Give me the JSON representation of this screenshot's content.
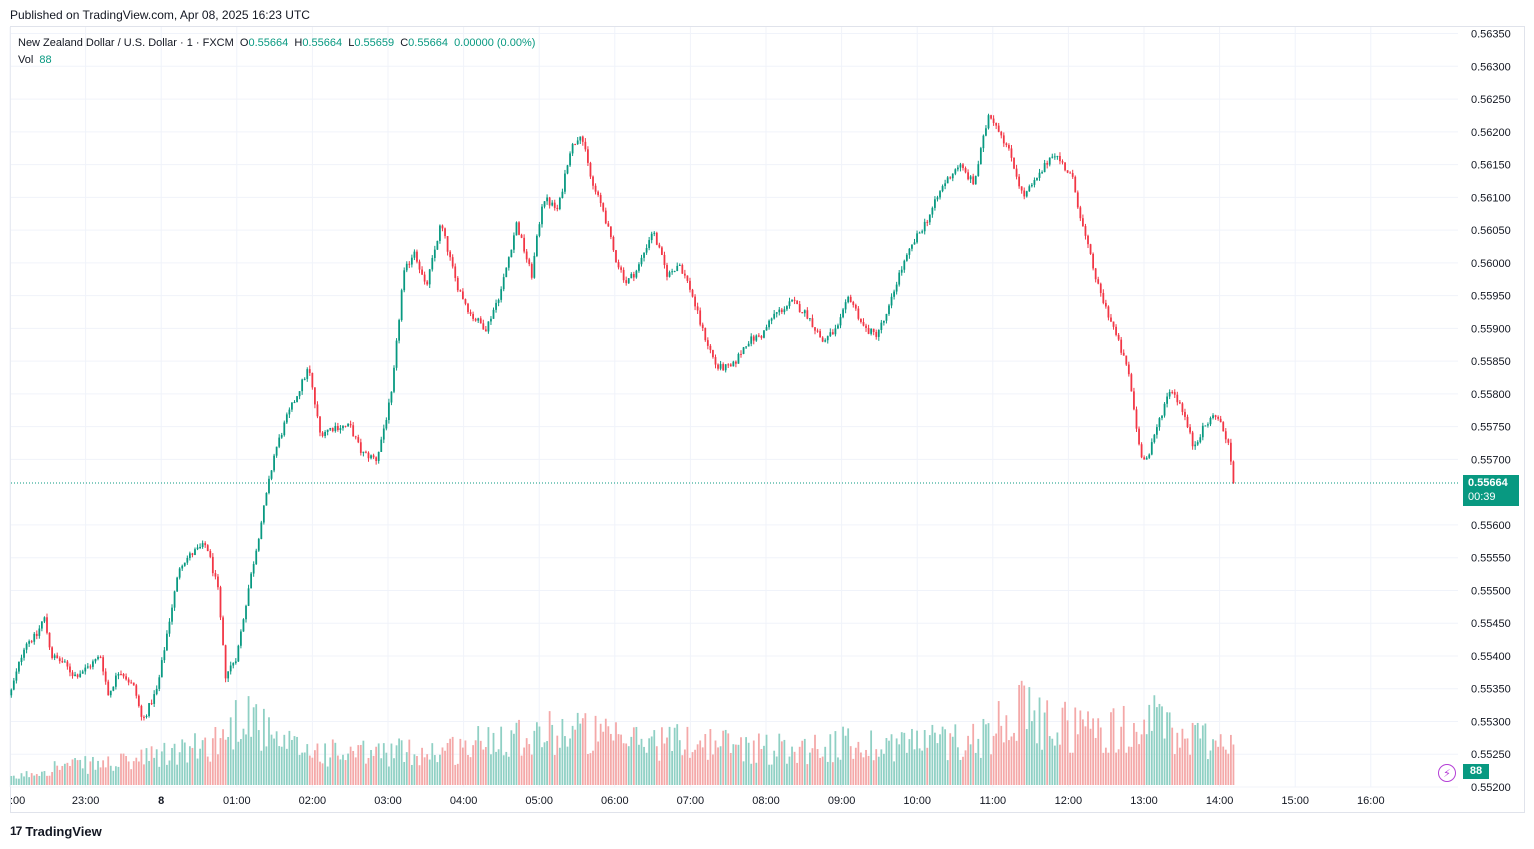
{
  "header": {
    "published": "Published on TradingView.com, Apr 08, 2025 16:23 UTC"
  },
  "legend": {
    "symbol": "New Zealand Dollar / U.S. Dollar · 1 · FXCM",
    "o_label": "O",
    "o_value": "0.55664",
    "h_label": "H",
    "h_value": "0.55664",
    "l_label": "L",
    "l_value": "0.55659",
    "c_label": "C",
    "c_value": "0.55664",
    "change": "0.00000 (0.00%)",
    "vol_label": "Vol",
    "vol_value": "88"
  },
  "last_price": {
    "value": "0.55664",
    "countdown": "00:39"
  },
  "volume_badge": "88",
  "footer": {
    "brand": "TradingView",
    "logo_glyph": "17"
  },
  "colors": {
    "up": "#089981",
    "down": "#f23645",
    "up_vol": "#8fd0c4",
    "down_vol": "#f4a8a8",
    "grid": "#f0f3fa",
    "axis_text": "#131722"
  },
  "chart_data": {
    "type": "candlestick",
    "title": "New Zealand Dollar / U.S. Dollar · 1 · FXCM",
    "y_axis": {
      "position": "right",
      "ylim": [
        0.552,
        0.5636
      ],
      "ticks": [
        "0.56350",
        "0.56300",
        "0.56250",
        "0.56200",
        "0.56150",
        "0.56100",
        "0.56050",
        "0.56000",
        "0.55950",
        "0.55900",
        "0.55850",
        "0.55800",
        "0.55750",
        "0.55700",
        "0.55600",
        "0.55550",
        "0.55500",
        "0.55450",
        "0.55400",
        "0.55350",
        "0.55300",
        "0.55250",
        "0.55200"
      ]
    },
    "x_axis": {
      "ticks": [
        ":00",
        "23:00",
        "8",
        "01:00",
        "02:00",
        "03:00",
        "04:00",
        "05:00",
        "06:00",
        "07:00",
        "08:00",
        "09:00",
        "10:00",
        "11:00",
        "12:00",
        "13:00",
        "14:00",
        "15:00",
        "16:00"
      ]
    },
    "last_close": 0.55664,
    "price_path": [
      [
        0,
        0.5534
      ],
      [
        0.2,
        0.5542
      ],
      [
        0.35,
        0.5543
      ],
      [
        0.45,
        0.5546
      ],
      [
        0.55,
        0.554
      ],
      [
        0.7,
        0.5539
      ],
      [
        0.85,
        0.5537
      ],
      [
        1.0,
        0.5538
      ],
      [
        1.2,
        0.554
      ],
      [
        1.3,
        0.5534
      ],
      [
        1.45,
        0.5538
      ],
      [
        1.65,
        0.5535
      ],
      [
        1.75,
        0.553
      ],
      [
        1.95,
        0.5535
      ],
      [
        2.1,
        0.5545
      ],
      [
        2.25,
        0.5554
      ],
      [
        2.45,
        0.5556
      ],
      [
        2.6,
        0.5557
      ],
      [
        2.75,
        0.555
      ],
      [
        2.85,
        0.5537
      ],
      [
        3.0,
        0.554
      ],
      [
        3.15,
        0.555
      ],
      [
        3.35,
        0.5562
      ],
      [
        3.5,
        0.5571
      ],
      [
        3.65,
        0.5576
      ],
      [
        3.8,
        0.558
      ],
      [
        3.95,
        0.5584
      ],
      [
        4.1,
        0.5574
      ],
      [
        4.3,
        0.5575
      ],
      [
        4.5,
        0.5575
      ],
      [
        4.65,
        0.5571
      ],
      [
        4.85,
        0.557
      ],
      [
        5.05,
        0.558
      ],
      [
        5.2,
        0.5598
      ],
      [
        5.35,
        0.5602
      ],
      [
        5.5,
        0.5596
      ],
      [
        5.7,
        0.5606
      ],
      [
        5.9,
        0.5597
      ],
      [
        6.1,
        0.5592
      ],
      [
        6.3,
        0.559
      ],
      [
        6.5,
        0.5596
      ],
      [
        6.7,
        0.5606
      ],
      [
        6.9,
        0.5598
      ],
      [
        7.05,
        0.561
      ],
      [
        7.25,
        0.5608
      ],
      [
        7.4,
        0.5617
      ],
      [
        7.55,
        0.562
      ],
      [
        7.7,
        0.5612
      ],
      [
        7.85,
        0.5608
      ],
      [
        8.0,
        0.5601
      ],
      [
        8.15,
        0.5597
      ],
      [
        8.3,
        0.5599
      ],
      [
        8.5,
        0.5605
      ],
      [
        8.7,
        0.5598
      ],
      [
        8.85,
        0.56
      ],
      [
        9.0,
        0.5596
      ],
      [
        9.15,
        0.559
      ],
      [
        9.35,
        0.5584
      ],
      [
        9.55,
        0.5584
      ],
      [
        9.75,
        0.5588
      ],
      [
        9.95,
        0.5589
      ],
      [
        10.1,
        0.5592
      ],
      [
        10.35,
        0.5594
      ],
      [
        10.55,
        0.5592
      ],
      [
        10.75,
        0.5588
      ],
      [
        10.95,
        0.559
      ],
      [
        11.1,
        0.5595
      ],
      [
        11.3,
        0.559
      ],
      [
        11.45,
        0.5589
      ],
      [
        11.6,
        0.5592
      ],
      [
        11.75,
        0.5598
      ],
      [
        11.95,
        0.5603
      ],
      [
        12.15,
        0.5607
      ],
      [
        12.35,
        0.5612
      ],
      [
        12.55,
        0.5615
      ],
      [
        12.75,
        0.5612
      ],
      [
        12.95,
        0.5623
      ],
      [
        13.1,
        0.562
      ],
      [
        13.25,
        0.5616
      ],
      [
        13.4,
        0.561
      ],
      [
        13.6,
        0.5613
      ],
      [
        13.8,
        0.5617
      ],
      [
        14.05,
        0.5613
      ],
      [
        14.2,
        0.5605
      ],
      [
        14.4,
        0.5596
      ],
      [
        14.6,
        0.559
      ],
      [
        14.8,
        0.5583
      ],
      [
        14.95,
        0.5571
      ],
      [
        15.05,
        0.557
      ],
      [
        15.2,
        0.5576
      ],
      [
        15.35,
        0.5581
      ],
      [
        15.5,
        0.5578
      ],
      [
        15.65,
        0.5572
      ],
      [
        15.8,
        0.5575
      ],
      [
        15.95,
        0.5577
      ],
      [
        16.1,
        0.5573
      ],
      [
        16.2,
        0.55664
      ]
    ],
    "volume": {
      "ylim": [
        0,
        300
      ],
      "path": [
        [
          0,
          8
        ],
        [
          0.6,
          25
        ],
        [
          1.5,
          30
        ],
        [
          2.0,
          40
        ],
        [
          2.5,
          50
        ],
        [
          2.9,
          70
        ],
        [
          3.1,
          110
        ],
        [
          3.5,
          55
        ],
        [
          4.5,
          40
        ],
        [
          5.0,
          45
        ],
        [
          5.5,
          45
        ],
        [
          6.0,
          50
        ],
        [
          6.5,
          70
        ],
        [
          7.0,
          70
        ],
        [
          7.5,
          75
        ],
        [
          8.0,
          60
        ],
        [
          8.5,
          60
        ],
        [
          9.0,
          60
        ],
        [
          9.5,
          55
        ],
        [
          10.0,
          50
        ],
        [
          10.5,
          50
        ],
        [
          11.0,
          55
        ],
        [
          11.5,
          55
        ],
        [
          12.0,
          60
        ],
        [
          12.5,
          60
        ],
        [
          13.0,
          70
        ],
        [
          13.2,
          110
        ],
        [
          13.6,
          85
        ],
        [
          14.0,
          80
        ],
        [
          14.5,
          75
        ],
        [
          14.9,
          75
        ],
        [
          15.1,
          90
        ],
        [
          15.5,
          65
        ],
        [
          16.2,
          60
        ]
      ]
    }
  }
}
